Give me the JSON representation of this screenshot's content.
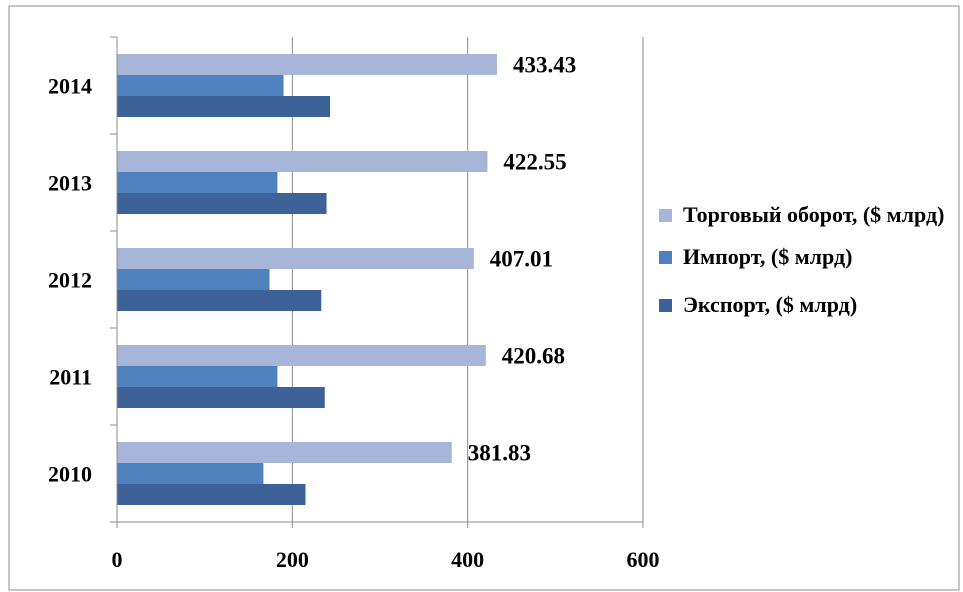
{
  "chart_data": {
    "type": "bar",
    "orientation": "horizontal",
    "categories": [
      "2014",
      "2013",
      "2012",
      "2011",
      "2010"
    ],
    "series": [
      {
        "name": "Торговый оборот, ($ млрд)",
        "color": "#a6b5d8",
        "values": [
          433.43,
          422.55,
          407.01,
          420.68,
          381.83
        ],
        "labels": [
          "433.43",
          "422.55",
          "407.01",
          "420.68",
          "381.83"
        ]
      },
      {
        "name": "Импорт, ($ млрд)",
        "color": "#4f81bd",
        "values": [
          190,
          183,
          174,
          183,
          167
        ]
      },
      {
        "name": "Экспорт, ($ млрд)",
        "color": "#3d6298",
        "values": [
          243,
          239,
          233,
          237,
          215
        ]
      }
    ],
    "xlim": [
      0,
      600
    ],
    "xticks": [
      "0",
      "200",
      "400",
      "600"
    ],
    "grid": true,
    "legend_position": "right"
  }
}
